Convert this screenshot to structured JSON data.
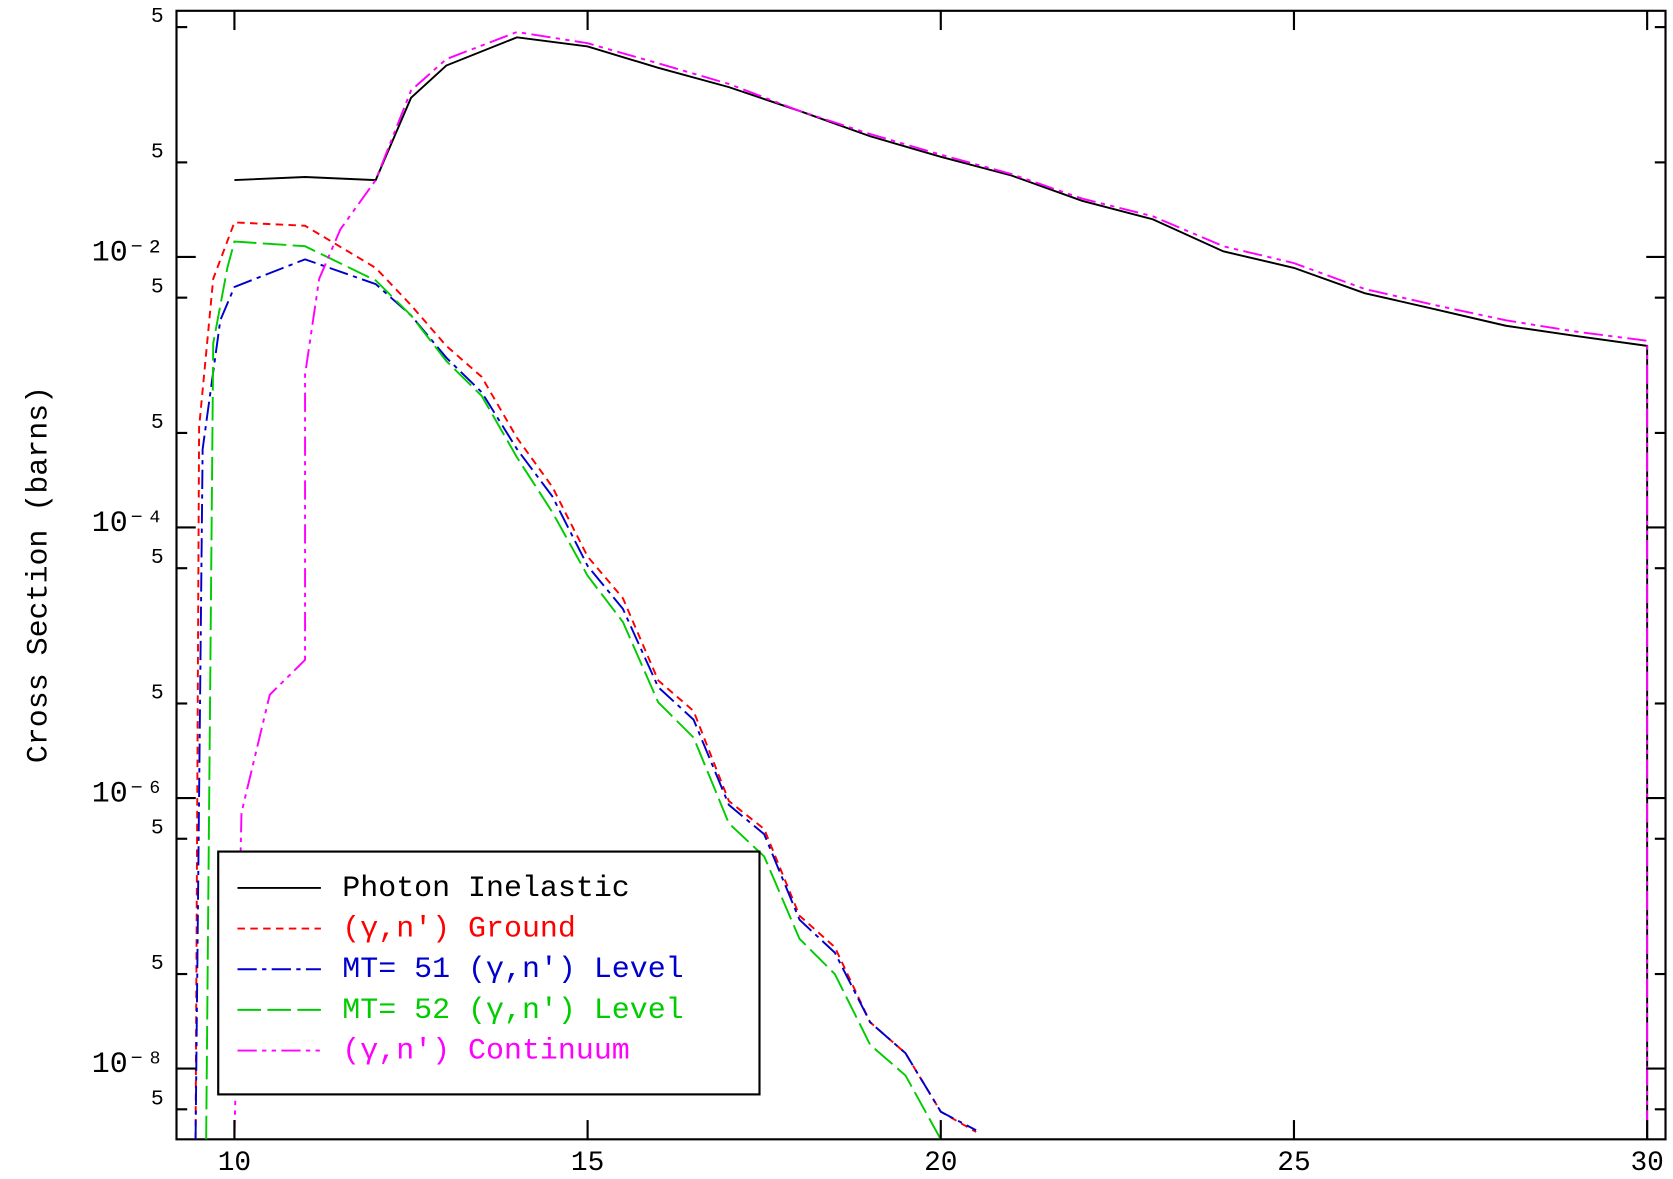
{
  "chart_data": {
    "type": "line",
    "y_label": "Cross Section (barns)",
    "log_y": true,
    "xlim": [
      9.18,
      30.26
    ],
    "ylim": [
      3e-09,
      0.66
    ],
    "xticks": [
      10,
      15,
      20,
      25,
      30
    ],
    "yticks": [
      {
        "value": 0.5,
        "label": "5"
      },
      {
        "value": 0.05,
        "label": "5"
      },
      {
        "value": 0.01,
        "label": "10⁻²"
      },
      {
        "value": 0.005,
        "label": "5"
      },
      {
        "value": 0.0005,
        "label": "5"
      },
      {
        "value": 0.0001,
        "label": "10⁻⁴"
      },
      {
        "value": 5e-05,
        "label": "5"
      },
      {
        "value": 5e-06,
        "label": "5"
      },
      {
        "value": 1e-06,
        "label": "10⁻⁶"
      },
      {
        "value": 5e-07,
        "label": "5"
      },
      {
        "value": 5e-08,
        "label": "5"
      },
      {
        "value": 1e-08,
        "label": "10⁻⁸"
      },
      {
        "value": 5e-09,
        "label": "5"
      }
    ],
    "legend_position": "lower left",
    "series": [
      {
        "name": "Photon Inelastic",
        "color": "#000000",
        "dash": "none",
        "x": [
          10,
          11,
          12,
          12.5,
          13,
          14,
          15,
          16,
          17,
          18,
          19,
          20,
          21,
          22,
          23,
          24,
          25,
          26,
          27,
          28,
          29,
          30,
          30
        ],
        "values": [
          0.037,
          0.039,
          0.037,
          0.15,
          0.26,
          0.42,
          0.36,
          0.25,
          0.18,
          0.12,
          0.078,
          0.055,
          0.04,
          0.026,
          0.019,
          0.011,
          0.0083,
          0.0054,
          0.0041,
          0.0031,
          0.0026,
          0.0022,
          1e-09
        ]
      },
      {
        "name": "(γ,n') Ground",
        "color": "#ff0000",
        "dash": "7,5",
        "x": [
          9.45,
          9.5,
          9.7,
          10,
          11,
          12,
          12.5,
          13,
          13.5,
          14,
          14.5,
          15,
          15.5,
          16,
          16.5,
          17,
          17.5,
          18,
          18.5,
          19,
          19.5,
          20,
          20.5
        ],
        "values": [
          3e-09,
          0.00055,
          0.0069,
          0.018,
          0.017,
          0.0083,
          0.0044,
          0.0022,
          0.0013,
          0.00046,
          0.0002,
          6.1e-05,
          3e-05,
          7.4e-06,
          4.4e-06,
          9.5e-07,
          5.9e-07,
          1.35e-07,
          7.9e-08,
          2.2e-08,
          1.3e-08,
          4.8e-09,
          3.4e-09
        ]
      },
      {
        "name": "MT= 51 (γ,n') Level",
        "color": "#0000cc",
        "dash": "18,5,4,5",
        "x": [
          9.45,
          9.55,
          9.8,
          10,
          11,
          12,
          12.5,
          13,
          13.5,
          14,
          14.5,
          15,
          15.5,
          16,
          16.5,
          17,
          17.5,
          18,
          18.5,
          19,
          19.5,
          20,
          20.5
        ],
        "values": [
          3e-09,
          0.00038,
          0.0034,
          0.006,
          0.0096,
          0.0063,
          0.0037,
          0.0018,
          0.001,
          0.00038,
          0.00017,
          5.2e-05,
          2.5e-05,
          6.6e-06,
          3.8e-06,
          8.9e-07,
          5.4e-07,
          1.26e-07,
          7.2e-08,
          2.2e-08,
          1.3e-08,
          4.8e-09,
          3.5e-09
        ]
      },
      {
        "name": "MT= 52 (γ,n') Level",
        "color": "#00cc00",
        "dash": "22,6",
        "x": [
          9.6,
          9.7,
          9.9,
          10,
          11,
          12,
          12.5,
          13,
          13.5,
          14,
          14.5,
          15,
          15.5,
          16,
          16.5,
          17,
          17.5,
          18,
          18.5,
          19,
          19.5,
          20
        ],
        "values": [
          3e-09,
          0.0023,
          0.0083,
          0.013,
          0.012,
          0.0067,
          0.0037,
          0.0017,
          0.00094,
          0.00033,
          0.00013,
          4.4e-05,
          2e-05,
          5.1e-06,
          2.8e-06,
          6.5e-07,
          3.7e-07,
          9.1e-08,
          5e-08,
          1.5e-08,
          8.9e-09,
          3e-09
        ]
      },
      {
        "name": "(γ,n') Continuum",
        "color": "#ff00ff",
        "dash": "18,5,4,5,4,5",
        "x": [
          10,
          10.1,
          10.5,
          11,
          11,
          11.2,
          11.5,
          12,
          12.5,
          13,
          14,
          15,
          16,
          17,
          18,
          19,
          20,
          21,
          22,
          23,
          24,
          25,
          26,
          27,
          28,
          29,
          30,
          30
        ],
        "values": [
          3e-09,
          7.8e-07,
          5.8e-06,
          1.05e-05,
          0.00135,
          0.0069,
          0.016,
          0.037,
          0.17,
          0.29,
          0.46,
          0.38,
          0.27,
          0.19,
          0.12,
          0.081,
          0.057,
          0.041,
          0.027,
          0.02,
          0.012,
          0.009,
          0.0058,
          0.0044,
          0.0034,
          0.0028,
          0.0024,
          1e-09
        ]
      }
    ]
  }
}
